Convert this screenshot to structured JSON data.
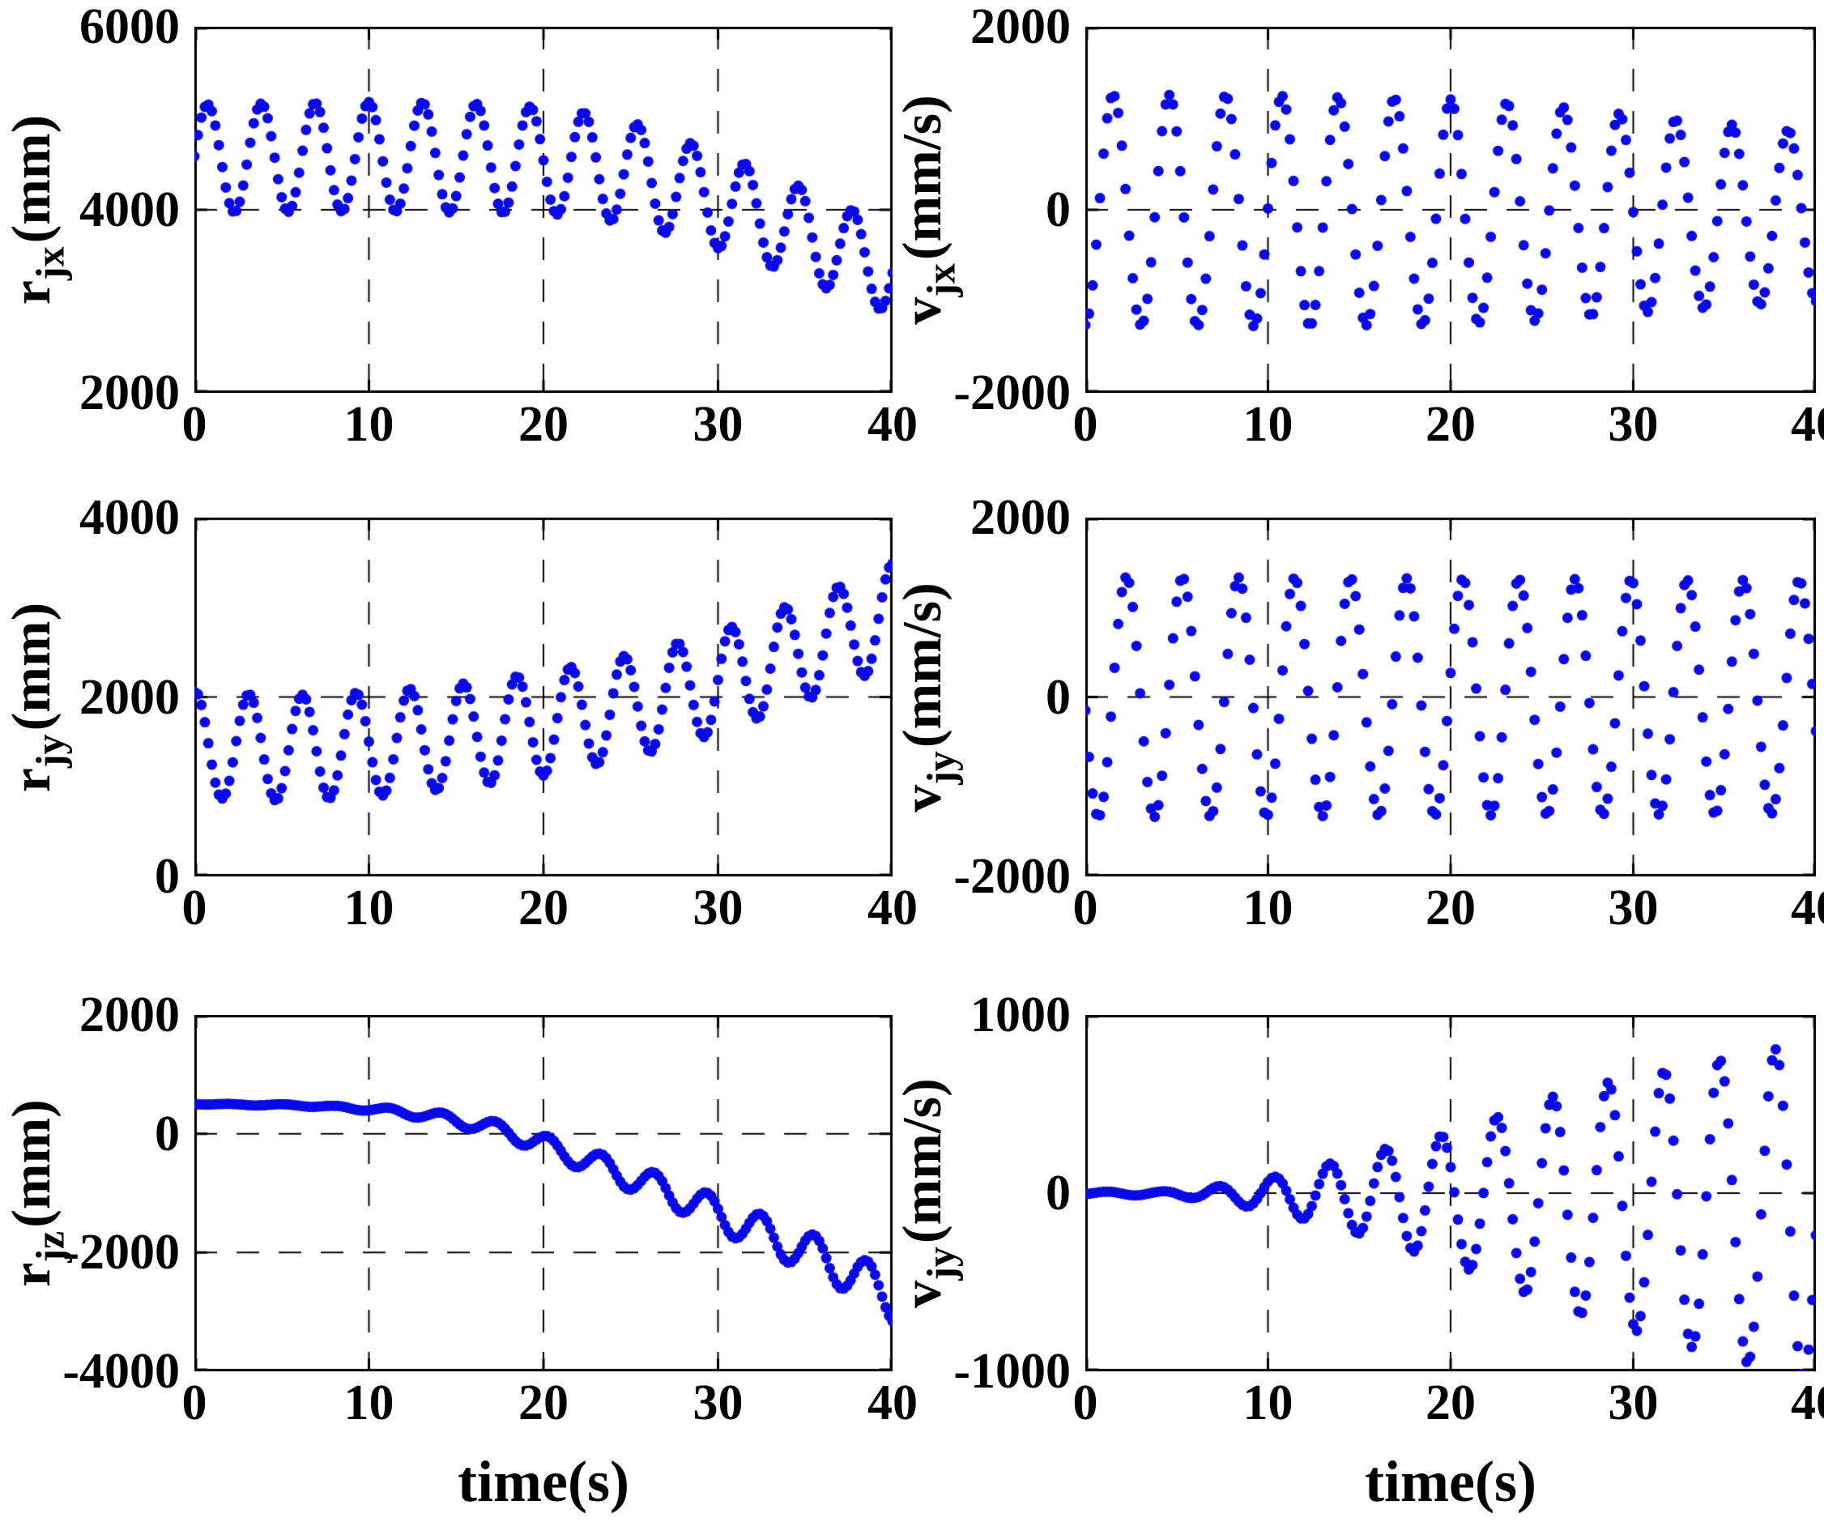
{
  "figure": {
    "background": "#ffffff",
    "marker_color": "#0a0ae8",
    "axis_color": "#000000",
    "grid_style": "dashed",
    "xlabel": "time(s)",
    "xlim": [
      0,
      40
    ],
    "x_ticks": [
      {
        "v": 0,
        "label": "0"
      },
      {
        "v": 10,
        "label": "10"
      },
      {
        "v": 20,
        "label": "20"
      },
      {
        "v": 30,
        "label": "30"
      },
      {
        "v": 40,
        "label": "40"
      }
    ],
    "x_grid": [
      10,
      20,
      30
    ],
    "sample_dt_s": 0.2,
    "marker": "dot"
  },
  "chart_data": [
    {
      "id": "r_jx",
      "type": "scatter",
      "row": 0,
      "col": 0,
      "ylabel": {
        "base": "r",
        "sub": "jx",
        "unit": "(mm)"
      },
      "ylim": [
        2000,
        6000
      ],
      "y_ticks": [
        {
          "v": 6000,
          "label": "6000"
        },
        {
          "v": 4000,
          "label": "4000"
        },
        {
          "v": 2000,
          "label": "2000"
        }
      ],
      "y_grid": [
        4000
      ],
      "signal": {
        "waveform": "cos",
        "period_s": 3.08,
        "phase_s": 0.75,
        "mean_keypoints": [
          [
            0,
            4560
          ],
          [
            5,
            4570
          ],
          [
            10,
            4580
          ],
          [
            15,
            4570
          ],
          [
            20,
            4540
          ],
          [
            23,
            4480
          ],
          [
            26,
            4350
          ],
          [
            30,
            4100
          ],
          [
            33,
            3890
          ],
          [
            36,
            3650
          ],
          [
            40,
            3330
          ]
        ],
        "amplitude_keypoints": [
          [
            0,
            590
          ],
          [
            15,
            600
          ],
          [
            25,
            560
          ],
          [
            30,
            520
          ],
          [
            35,
            500
          ],
          [
            40,
            470
          ]
        ]
      }
    },
    {
      "id": "v_jx",
      "type": "scatter",
      "row": 0,
      "col": 1,
      "ylabel": {
        "base": "v",
        "sub": "jx",
        "unit": "(mm/s)"
      },
      "ylim": [
        -2000,
        2000
      ],
      "y_ticks": [
        {
          "v": 2000,
          "label": "2000"
        },
        {
          "v": 0,
          "label": "0"
        },
        {
          "v": -2000,
          "label": "-2000"
        }
      ],
      "y_grid": [
        0
      ],
      "signal": {
        "waveform": "sin",
        "period_s": 3.08,
        "phase_s": 0.75,
        "mean_keypoints": [
          [
            0,
            0
          ],
          [
            25,
            -30
          ],
          [
            40,
            -80
          ]
        ],
        "amplitude_keypoints": [
          [
            0,
            1260
          ],
          [
            10,
            1260
          ],
          [
            20,
            1230
          ],
          [
            25,
            1180
          ],
          [
            30,
            1080
          ],
          [
            35,
            1000
          ],
          [
            40,
            920
          ]
        ]
      }
    },
    {
      "id": "r_jy",
      "type": "scatter",
      "row": 1,
      "col": 0,
      "ylabel": {
        "base": "r",
        "sub": "jy",
        "unit": "(mm)"
      },
      "ylim": [
        0,
        4000
      ],
      "y_ticks": [
        {
          "v": 4000,
          "label": "4000"
        },
        {
          "v": 2000,
          "label": "2000"
        },
        {
          "v": 0,
          "label": "0"
        }
      ],
      "y_grid": [
        2000
      ],
      "signal": {
        "waveform": "cos",
        "period_s": 3.07,
        "phase_s": 0.05,
        "mean_keypoints": [
          [
            0,
            1470
          ],
          [
            5,
            1430
          ],
          [
            10,
            1470
          ],
          [
            15,
            1560
          ],
          [
            20,
            1700
          ],
          [
            25,
            1900
          ],
          [
            28,
            2050
          ],
          [
            31,
            2230
          ],
          [
            34,
            2450
          ],
          [
            37,
            2680
          ],
          [
            40,
            2930
          ]
        ],
        "amplitude_keypoints": [
          [
            0,
            590
          ],
          [
            40,
            560
          ]
        ]
      }
    },
    {
      "id": "v_jy",
      "type": "scatter",
      "row": 1,
      "col": 1,
      "ylabel": {
        "base": "v",
        "sub": "jy",
        "unit": "(mm/s)"
      },
      "ylim": [
        -2000,
        2000
      ],
      "y_ticks": [
        {
          "v": 2000,
          "label": "2000"
        },
        {
          "v": 0,
          "label": "0"
        },
        {
          "v": -2000,
          "label": "-2000"
        }
      ],
      "y_grid": [
        0
      ],
      "signal": {
        "waveform": "sin",
        "period_s": 3.07,
        "phase_s": 1.48,
        "mean_keypoints": [
          [
            0,
            0
          ],
          [
            40,
            0
          ]
        ],
        "amplitude_keypoints": [
          [
            0,
            1340
          ],
          [
            40,
            1300
          ]
        ]
      }
    },
    {
      "id": "r_jz",
      "type": "scatter",
      "row": 2,
      "col": 0,
      "ylabel": {
        "base": "r",
        "sub": "jz",
        "unit": "(mm)"
      },
      "ylim": [
        -4000,
        2000
      ],
      "y_ticks": [
        {
          "v": 2000,
          "label": "2000"
        },
        {
          "v": 0,
          "label": "0"
        },
        {
          "v": -2000,
          "label": "-2000"
        },
        {
          "v": -4000,
          "label": "-4000"
        }
      ],
      "y_grid": [
        0,
        -2000
      ],
      "signal": {
        "waveform": "cos",
        "period_s": 3.05,
        "phase_s": 1.94,
        "mean_keypoints": [
          [
            0,
            500
          ],
          [
            6,
            480
          ],
          [
            10,
            420
          ],
          [
            13,
            330
          ],
          [
            16,
            170
          ],
          [
            18,
            30
          ],
          [
            20,
            -180
          ],
          [
            22,
            -400
          ],
          [
            24,
            -620
          ],
          [
            26,
            -850
          ],
          [
            28,
            -1080
          ],
          [
            30,
            -1350
          ],
          [
            32,
            -1600
          ],
          [
            34,
            -1850
          ],
          [
            36,
            -2100
          ],
          [
            38,
            -2400
          ],
          [
            40,
            -2780
          ]
        ],
        "amplitude_keypoints": [
          [
            0,
            5
          ],
          [
            8,
            20
          ],
          [
            12,
            60
          ],
          [
            16,
            110
          ],
          [
            20,
            160
          ],
          [
            24,
            210
          ],
          [
            28,
            260
          ],
          [
            32,
            300
          ],
          [
            36,
            340
          ],
          [
            40,
            380
          ]
        ]
      }
    },
    {
      "id": "v_jz_panel_labeled_v_jy",
      "type": "scatter",
      "row": 2,
      "col": 1,
      "ylabel": {
        "base": "v",
        "sub": "jy",
        "unit": "(mm/s)"
      },
      "ylim": [
        -1000,
        1000
      ],
      "y_ticks": [
        {
          "v": 1000,
          "label": "1000"
        },
        {
          "v": 0,
          "label": "0"
        },
        {
          "v": -1000,
          "label": "-1000"
        }
      ],
      "y_grid": [
        0
      ],
      "signal": {
        "waveform": "sin",
        "period_s": 3.05,
        "phase_s": 0.415,
        "mean_keypoints": [
          [
            0,
            0
          ],
          [
            15,
            -10
          ],
          [
            25,
            -40
          ],
          [
            30,
            -60
          ],
          [
            35,
            -80
          ],
          [
            40,
            -110
          ]
        ],
        "amplitude_keypoints": [
          [
            0,
            8
          ],
          [
            4,
            12
          ],
          [
            6,
            25
          ],
          [
            8,
            55
          ],
          [
            10,
            90
          ],
          [
            12,
            140
          ],
          [
            14,
            190
          ],
          [
            16,
            250
          ],
          [
            18,
            310
          ],
          [
            20,
            360
          ],
          [
            22,
            440
          ],
          [
            24,
            520
          ],
          [
            26,
            600
          ],
          [
            28,
            660
          ],
          [
            30,
            710
          ],
          [
            32,
            760
          ],
          [
            34,
            810
          ],
          [
            36,
            860
          ],
          [
            38,
            910
          ],
          [
            40,
            950
          ]
        ]
      }
    }
  ]
}
